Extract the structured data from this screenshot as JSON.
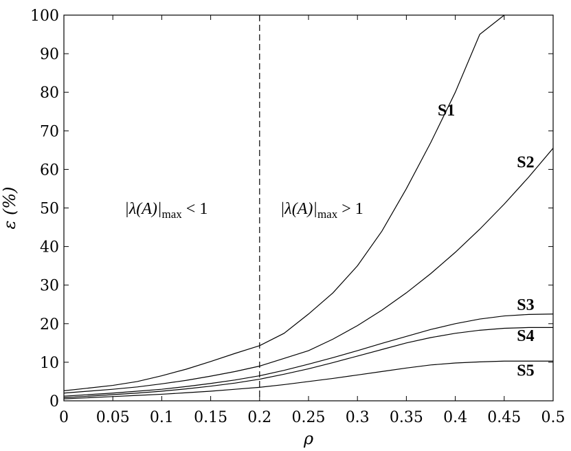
{
  "chart_data": {
    "type": "line",
    "xlabel": "ρ",
    "ylabel": "ε (%)",
    "xlim": [
      0,
      0.5
    ],
    "ylim": [
      0,
      100
    ],
    "xticks": [
      "0",
      "0.05",
      "0.1",
      "0.15",
      "0.2",
      "0.25",
      "0.3",
      "0.35",
      "0.4",
      "0.45",
      "0.5"
    ],
    "yticks": [
      "0",
      "10",
      "20",
      "30",
      "40",
      "50",
      "60",
      "70",
      "80",
      "90",
      "100"
    ],
    "grid": false,
    "threshold_x": 0.2,
    "regions": {
      "left": {
        "prefix": "|λ(A)|",
        "sub": "max",
        "suffix": " < 1"
      },
      "right": {
        "prefix": "|λ(A)|",
        "sub": "max",
        "suffix": " > 1"
      }
    },
    "x": [
      0,
      0.025,
      0.05,
      0.075,
      0.1,
      0.125,
      0.15,
      0.175,
      0.2,
      0.225,
      0.25,
      0.275,
      0.3,
      0.325,
      0.35,
      0.375,
      0.4,
      0.425,
      0.45,
      0.475,
      0.5
    ],
    "series": [
      {
        "name": "S1",
        "values": [
          2.6,
          3.3,
          4.0,
          5.0,
          6.5,
          8.2,
          10.2,
          12.3,
          14.3,
          17.5,
          22.5,
          28,
          35,
          44,
          55,
          67,
          80,
          95,
          100,
          null,
          null
        ]
      },
      {
        "name": "S2",
        "values": [
          2.0,
          2.5,
          3.0,
          3.6,
          4.4,
          5.3,
          6.4,
          7.6,
          9.0,
          11.0,
          13.0,
          16,
          19.5,
          23.5,
          28,
          33,
          38.5,
          44.5,
          51,
          58,
          65.5
        ]
      },
      {
        "name": "S3",
        "values": [
          1.2,
          1.6,
          2.0,
          2.5,
          3.0,
          3.7,
          4.5,
          5.4,
          6.5,
          7.9,
          9.5,
          11.2,
          13,
          14.9,
          16.7,
          18.5,
          20,
          21.2,
          22,
          22.4,
          22.5
        ]
      },
      {
        "name": "S4",
        "values": [
          0.8,
          1.2,
          1.6,
          2.0,
          2.5,
          3.1,
          3.8,
          4.6,
          5.6,
          6.9,
          8.3,
          9.9,
          11.6,
          13.3,
          15,
          16.4,
          17.5,
          18.3,
          18.8,
          19.0,
          19.0
        ]
      },
      {
        "name": "S5",
        "values": [
          0.5,
          0.8,
          1.1,
          1.4,
          1.7,
          2.1,
          2.5,
          3.0,
          3.5,
          4.2,
          5.0,
          5.8,
          6.7,
          7.6,
          8.5,
          9.3,
          9.8,
          10.1,
          10.3,
          10.3,
          10.3
        ]
      }
    ],
    "series_labels": [
      {
        "text": "S1",
        "x": 0.382,
        "y": 74
      },
      {
        "text": "S2",
        "x": 0.463,
        "y": 60.5
      },
      {
        "text": "S3",
        "x": 0.463,
        "y": 23.5
      },
      {
        "text": "S4",
        "x": 0.463,
        "y": 15.5
      },
      {
        "text": "S5",
        "x": 0.463,
        "y": 6.5
      }
    ],
    "region_label_pos": {
      "left": {
        "x": 0.062,
        "y": 48.5
      },
      "right": {
        "x": 0.221,
        "y": 48.5
      }
    }
  }
}
